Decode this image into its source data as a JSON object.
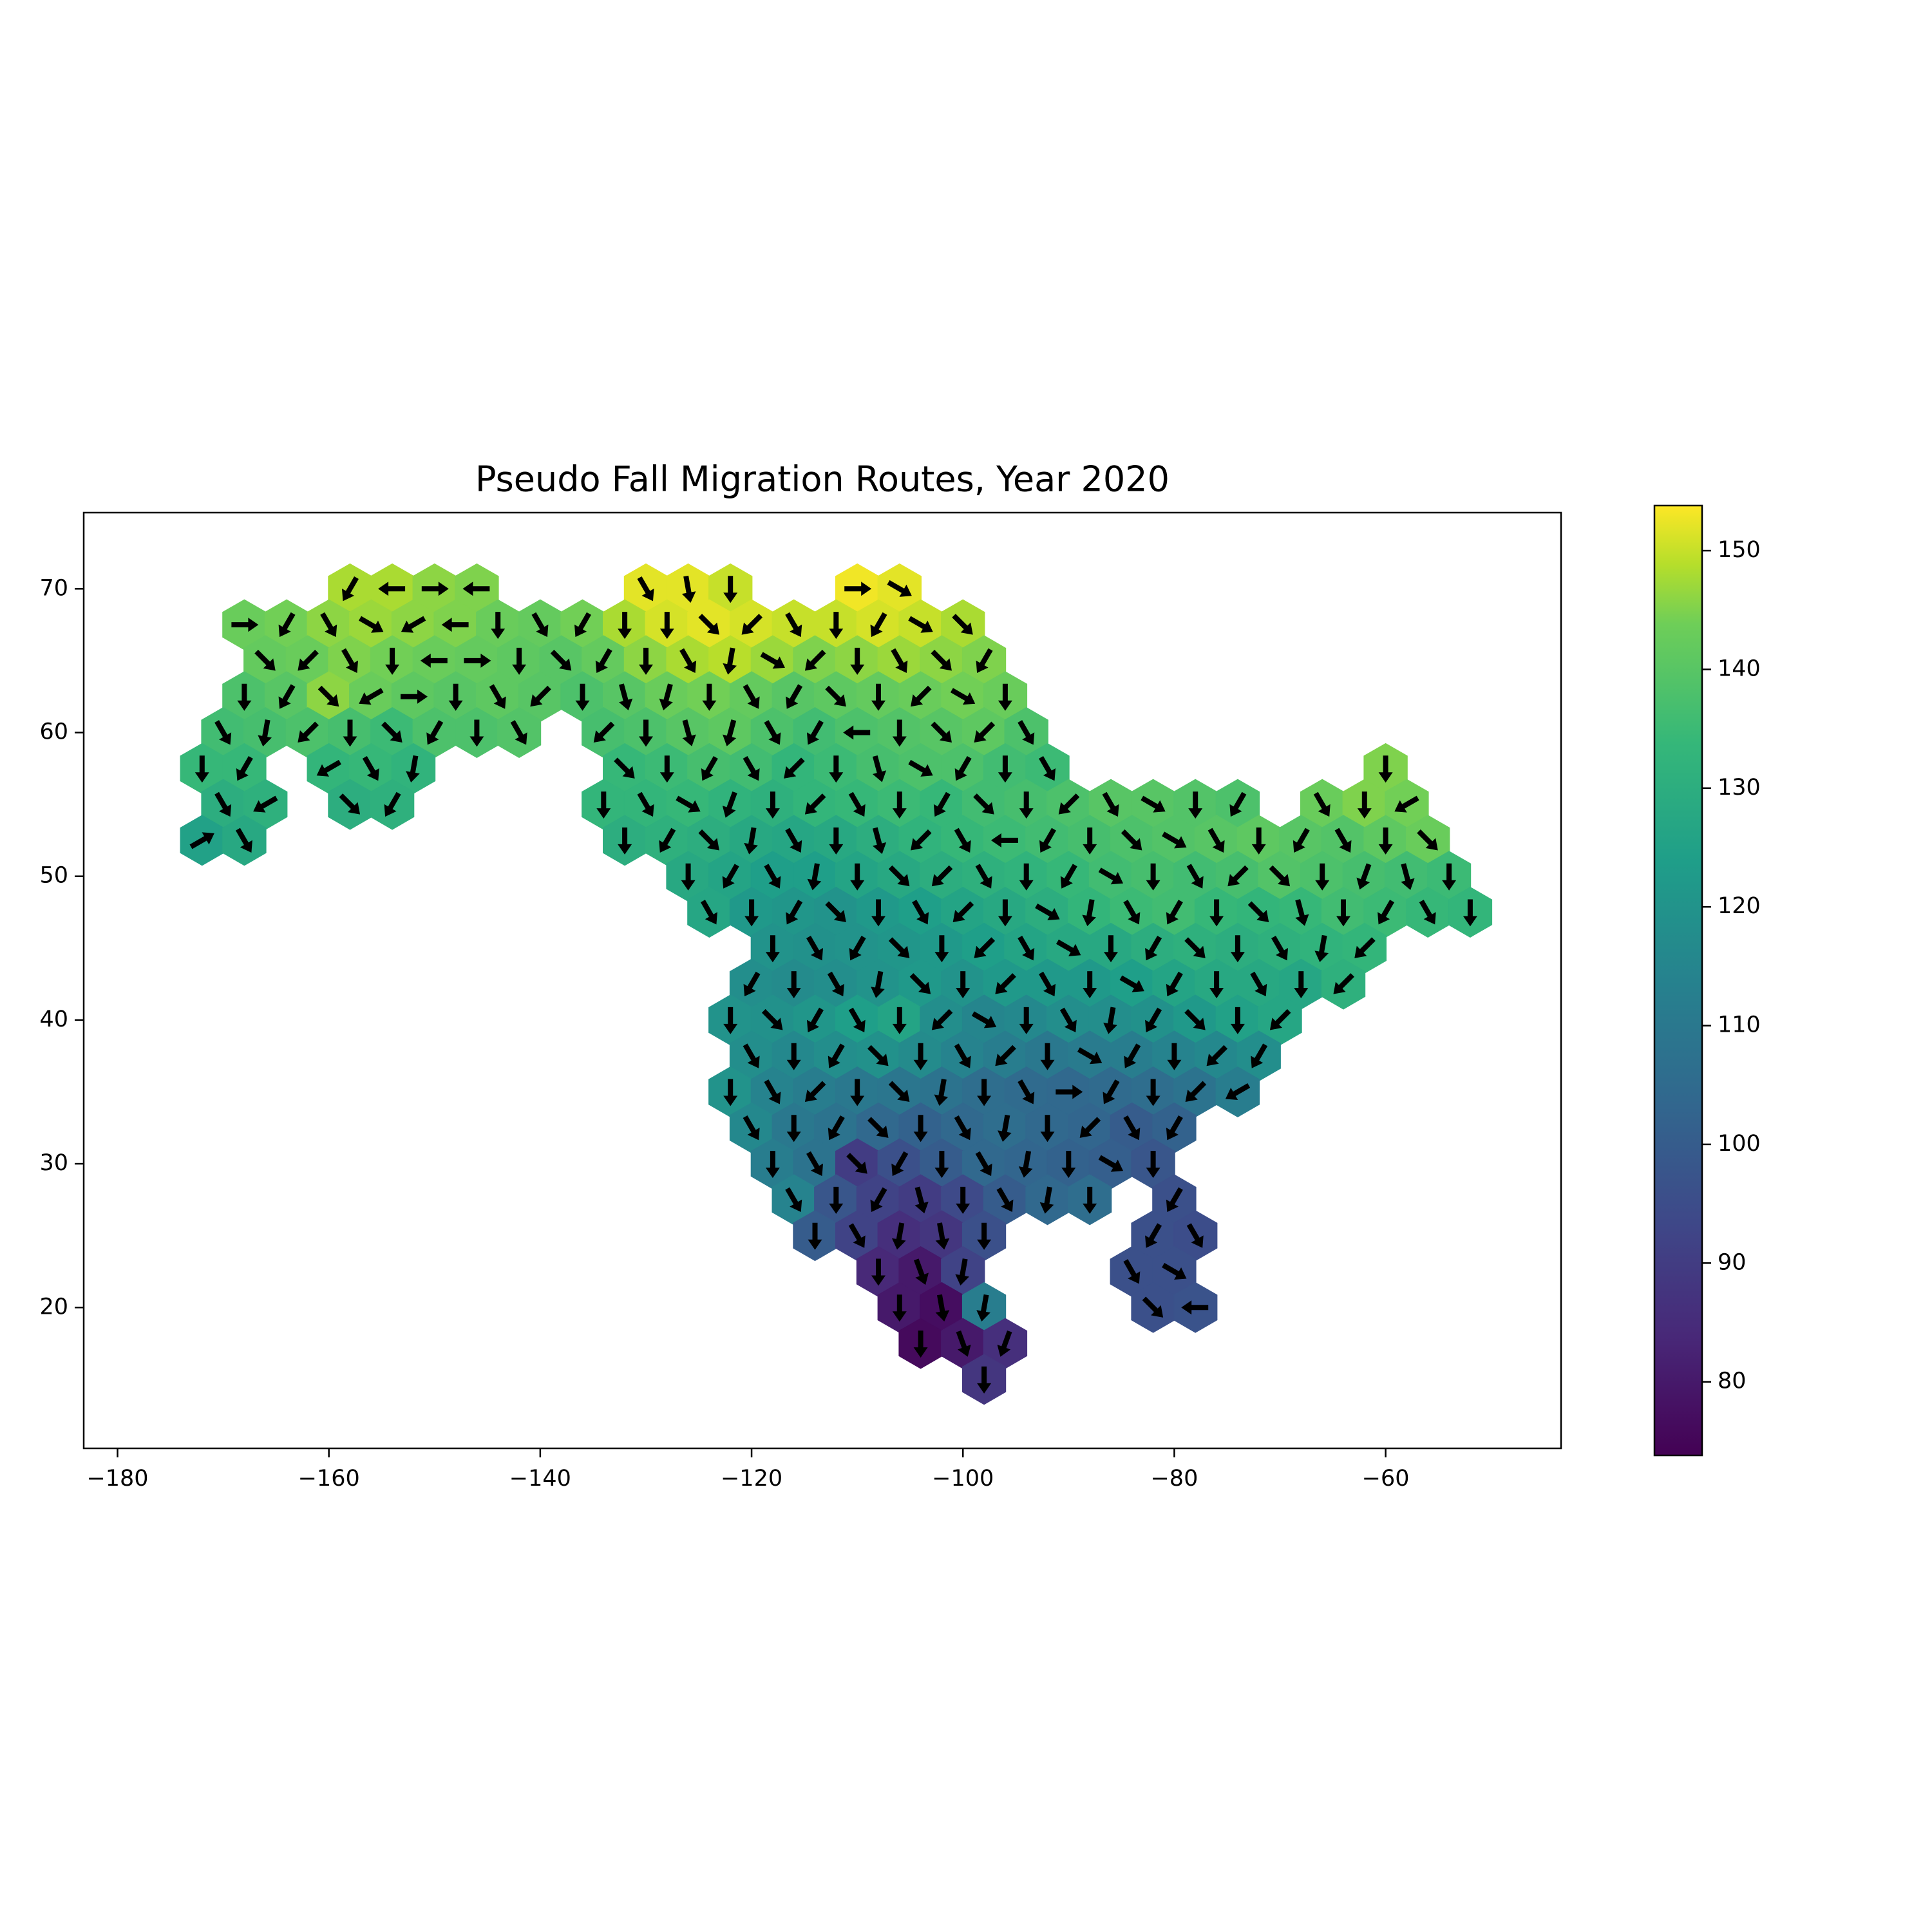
{
  "chart_data": {
    "type": "hexmap",
    "title": "Pseudo Fall Migration Routes, Year 2020",
    "xlim": [
      -183.2,
      -43.4
    ],
    "ylim": [
      10.2,
      75.3
    ],
    "xticks": [
      {
        "value": -180,
        "label": "−180"
      },
      {
        "value": -160,
        "label": "−160"
      },
      {
        "value": -140,
        "label": "−140"
      },
      {
        "value": -120,
        "label": "−120"
      },
      {
        "value": -100,
        "label": "−100"
      },
      {
        "value": -80,
        "label": "−80"
      },
      {
        "value": -60,
        "label": "−60"
      }
    ],
    "yticks": [
      20,
      30,
      40,
      50,
      60,
      70
    ],
    "clim": [
      73.8,
      153.8
    ],
    "cticks": [
      80,
      90,
      100,
      110,
      120,
      130,
      140,
      150
    ],
    "colormap": "viridis",
    "rows": [
      {
        "lat": 70,
        "lon": [
          -158,
          -154,
          -150,
          -146,
          -130,
          -126,
          -122,
          -110,
          -106
        ],
        "values": [
          148,
          148,
          146,
          145,
          152,
          152,
          150,
          153,
          152
        ],
        "directions": [
          -120,
          180,
          0,
          180,
          -60,
          -80,
          -90,
          0,
          -30
        ]
      },
      {
        "lat": 67.5,
        "lon": [
          -168,
          -164,
          -160,
          -156,
          -152,
          -148,
          -144,
          -140,
          -136,
          -132,
          -128,
          -124,
          -120,
          -116,
          -112,
          -108,
          -104,
          -100
        ],
        "values": [
          143,
          144,
          146,
          147,
          146,
          145,
          143,
          142,
          144,
          148,
          151,
          152,
          151,
          150,
          150,
          151,
          150,
          148
        ],
        "directions": [
          0,
          -120,
          -60,
          -30,
          -150,
          180,
          -90,
          -60,
          -120,
          -90,
          -90,
          -45,
          -135,
          -60,
          -90,
          -120,
          -30,
          -45
        ]
      },
      {
        "lat": 65,
        "lon": [
          -166,
          -162,
          -158,
          -154,
          -150,
          -146,
          -142,
          -138,
          -134,
          -130,
          -126,
          -122,
          -118,
          -114,
          -110,
          -106,
          -102,
          -98
        ],
        "values": [
          142,
          143,
          145,
          144,
          143,
          142,
          141,
          140,
          142,
          146,
          148,
          149,
          147,
          145,
          146,
          147,
          146,
          145
        ],
        "directions": [
          -45,
          -135,
          -60,
          -90,
          180,
          0,
          -90,
          -45,
          -120,
          -90,
          -60,
          -100,
          -30,
          -135,
          -90,
          -60,
          -45,
          -120
        ]
      },
      {
        "lat": 62.5,
        "lon": [
          -168,
          -164,
          -160,
          -156,
          -152,
          -148,
          -144,
          -140,
          -136,
          -132,
          -128,
          -124,
          -120,
          -116,
          -112,
          -108,
          -104,
          -100,
          -96
        ],
        "values": [
          138,
          140,
          146,
          143,
          141,
          140,
          141,
          140,
          138,
          140,
          143,
          144,
          142,
          140,
          141,
          142,
          143,
          144,
          143
        ],
        "directions": [
          -90,
          -120,
          -45,
          -150,
          0,
          -90,
          -60,
          -135,
          -90,
          -75,
          -105,
          -90,
          -60,
          -120,
          -45,
          -90,
          -135,
          -30,
          -90
        ]
      },
      {
        "lat": 60,
        "lon": [
          -170,
          -166,
          -162,
          -158,
          -154,
          -150,
          -146,
          -142,
          -134,
          -130,
          -126,
          -122,
          -118,
          -114,
          -110,
          -106,
          -102,
          -98,
          -94
        ],
        "values": [
          136,
          137,
          138,
          137,
          135,
          138,
          138,
          139,
          137,
          138,
          140,
          141,
          138,
          136,
          138,
          139,
          140,
          141,
          138
        ],
        "directions": [
          -60,
          -100,
          -135,
          -90,
          -45,
          -120,
          -90,
          -60,
          -135,
          -90,
          -75,
          -105,
          -60,
          -120,
          180,
          -90,
          -45,
          -135,
          -60
        ]
      },
      {
        "lat": 57.5,
        "lon": [
          -172,
          -168,
          -160,
          -156,
          -152,
          -132,
          -128,
          -124,
          -120,
          -116,
          -112,
          -108,
          -104,
          -100,
          -96,
          -92,
          -60
        ],
        "values": [
          134,
          134,
          133,
          134,
          132,
          134,
          135,
          137,
          136,
          133,
          135,
          137,
          138,
          138,
          136,
          135,
          145
        ],
        "directions": [
          -90,
          -120,
          -150,
          -60,
          -100,
          -45,
          -90,
          -120,
          -60,
          -135,
          -90,
          -75,
          -30,
          -120,
          -90,
          -60,
          -90
        ]
      },
      {
        "lat": 55,
        "lon": [
          -170,
          -166,
          -158,
          -154,
          -134,
          -130,
          -126,
          -122,
          -118,
          -114,
          -110,
          -106,
          -102,
          -98,
          -94,
          -90,
          -86,
          -82,
          -78,
          -74,
          -66,
          -62,
          -58
        ],
        "values": [
          130,
          131,
          130,
          131,
          133,
          133,
          134,
          132,
          131,
          133,
          134,
          135,
          134,
          136,
          137,
          138,
          140,
          140,
          139,
          138,
          143,
          145,
          144
        ],
        "directions": [
          -60,
          -150,
          -45,
          -120,
          -90,
          -60,
          -30,
          -110,
          -90,
          -135,
          -60,
          -90,
          -120,
          -45,
          -90,
          -135,
          -60,
          -30,
          -90,
          -120,
          -60,
          -90,
          -150
        ]
      },
      {
        "lat": 52.5,
        "lon": [
          -172,
          -168,
          -132,
          -128,
          -124,
          -120,
          -116,
          -112,
          -108,
          -104,
          -100,
          -96,
          -92,
          -88,
          -84,
          -80,
          -76,
          -72,
          -68,
          -64,
          -60,
          -56
        ],
        "values": [
          125,
          128,
          130,
          131,
          130,
          128,
          127,
          128,
          130,
          132,
          134,
          135,
          136,
          137,
          138,
          139,
          140,
          141,
          140,
          139,
          141,
          143
        ],
        "directions": [
          30,
          -60,
          -90,
          -120,
          -45,
          -100,
          -60,
          -90,
          -75,
          -135,
          -60,
          180,
          -120,
          -90,
          -45,
          -30,
          -60,
          -90,
          -120,
          -60,
          -90,
          -45
        ]
      },
      {
        "lat": 50,
        "lon": [
          -126,
          -122,
          -118,
          -114,
          -110,
          -106,
          -102,
          -98,
          -94,
          -90,
          -86,
          -82,
          -78,
          -74,
          -70,
          -66,
          -62,
          -58,
          -54
        ],
        "values": [
          128,
          126,
          124,
          124,
          126,
          128,
          130,
          131,
          132,
          134,
          136,
          137,
          136,
          137,
          139,
          138,
          137,
          136,
          135
        ],
        "directions": [
          -90,
          -120,
          -60,
          -100,
          -90,
          -45,
          -135,
          -60,
          -90,
          -120,
          -30,
          -90,
          -60,
          -135,
          -45,
          -90,
          -110,
          -75,
          -90
        ]
      },
      {
        "lat": 47.5,
        "lon": [
          -124,
          -120,
          -116,
          -112,
          -108,
          -104,
          -100,
          -96,
          -92,
          -88,
          -84,
          -80,
          -76,
          -72,
          -68,
          -64,
          -60,
          -56,
          -52
        ],
        "values": [
          127,
          122,
          121,
          120,
          122,
          124,
          126,
          128,
          130,
          133,
          135,
          136,
          134,
          133,
          134,
          136,
          135,
          134,
          133
        ],
        "directions": [
          -60,
          -90,
          -120,
          -45,
          -90,
          -60,
          -135,
          -90,
          -30,
          -100,
          -60,
          -120,
          -90,
          -45,
          -75,
          -90,
          -120,
          -60,
          -90
        ]
      },
      {
        "lat": 45,
        "lon": [
          -118,
          -114,
          -110,
          -106,
          -102,
          -98,
          -94,
          -90,
          -86,
          -82,
          -78,
          -74,
          -70,
          -66,
          -62
        ],
        "values": [
          120,
          119,
          120,
          121,
          122,
          124,
          126,
          128,
          128,
          130,
          131,
          130,
          131,
          132,
          133
        ],
        "directions": [
          -90,
          -60,
          -120,
          -45,
          -90,
          -135,
          -60,
          -30,
          -90,
          -120,
          -45,
          -90,
          -60,
          -100,
          -135
        ]
      },
      {
        "lat": 42.5,
        "lon": [
          -120,
          -116,
          -112,
          -108,
          -104,
          -100,
          -96,
          -92,
          -88,
          -84,
          -80,
          -76,
          -72,
          -68,
          -64
        ],
        "values": [
          118,
          117,
          118,
          120,
          122,
          120,
          122,
          122,
          122,
          124,
          126,
          128,
          128,
          127,
          131
        ],
        "directions": [
          -120,
          -90,
          -60,
          -100,
          -45,
          -90,
          -135,
          -60,
          -90,
          -30,
          -120,
          -90,
          -60,
          -90,
          -135
        ]
      },
      {
        "lat": 40,
        "lon": [
          -122,
          -118,
          -114,
          -110,
          -106,
          -102,
          -98,
          -94,
          -90,
          -86,
          -82,
          -78,
          -74,
          -70
        ],
        "values": [
          120,
          119,
          121,
          124,
          126,
          118,
          115,
          116,
          118,
          118,
          119,
          122,
          125,
          127
        ],
        "directions": [
          -90,
          -45,
          -120,
          -60,
          -90,
          -135,
          -30,
          -90,
          -60,
          -100,
          -120,
          -45,
          -90,
          -135
        ]
      },
      {
        "lat": 37.5,
        "lon": [
          -120,
          -116,
          -112,
          -108,
          -104,
          -100,
          -96,
          -92,
          -88,
          -84,
          -80,
          -76,
          -72
        ],
        "values": [
          118,
          116,
          118,
          119,
          117,
          114,
          112,
          110,
          111,
          112,
          114,
          116,
          118
        ],
        "directions": [
          -60,
          -90,
          -120,
          -45,
          -90,
          -60,
          -135,
          -90,
          -30,
          -120,
          -90,
          -135,
          -120
        ]
      },
      {
        "lat": 35,
        "lon": [
          -122,
          -118,
          -114,
          -110,
          -106,
          -102,
          -98,
          -94,
          -90,
          -86,
          -82,
          -78,
          -74
        ],
        "values": [
          120,
          114,
          112,
          110,
          109,
          108,
          106,
          105,
          104,
          105,
          106,
          108,
          112
        ],
        "directions": [
          -90,
          -60,
          -135,
          -90,
          -45,
          -100,
          -90,
          -60,
          0,
          -120,
          -90,
          -135,
          -150
        ]
      },
      {
        "lat": 32.5,
        "lon": [
          -120,
          -116,
          -112,
          -108,
          -104,
          -100,
          -96,
          -92,
          -88,
          -84,
          -80
        ],
        "values": [
          116,
          110,
          108,
          104,
          102,
          104,
          106,
          104,
          103,
          100,
          102
        ],
        "directions": [
          -60,
          -90,
          -120,
          -45,
          -90,
          -60,
          -100,
          -90,
          -135,
          -60,
          -120
        ]
      },
      {
        "lat": 30,
        "lon": [
          -118,
          -114,
          -110,
          -106,
          -102,
          -98,
          -94,
          -90,
          -86,
          -82
        ],
        "values": [
          112,
          108,
          90,
          96,
          100,
          104,
          103,
          102,
          101,
          98
        ],
        "directions": [
          -90,
          -60,
          -45,
          -120,
          -90,
          -60,
          -100,
          -90,
          -30,
          -90
        ]
      },
      {
        "lat": 27.5,
        "lon": [
          -116,
          -112,
          -108,
          -104,
          -100,
          -96,
          -92,
          -88,
          -80
        ],
        "values": [
          114,
          98,
          92,
          90,
          94,
          100,
          104,
          106,
          96
        ],
        "directions": [
          -60,
          -90,
          -120,
          -75,
          -90,
          -60,
          -100,
          -90,
          -120
        ]
      },
      {
        "lat": 25,
        "lon": [
          -114,
          -110,
          -106,
          -102,
          -98,
          -82,
          -78
        ],
        "values": [
          100,
          92,
          86,
          88,
          96,
          96,
          95
        ],
        "directions": [
          -90,
          -60,
          -100,
          -80,
          -90,
          -120,
          -60
        ]
      },
      {
        "lat": 22.5,
        "lon": [
          -108,
          -104,
          -100,
          -84,
          -80
        ],
        "values": [
          84,
          80,
          92,
          96,
          96
        ],
        "directions": [
          -90,
          -70,
          -100,
          -60,
          -30
        ]
      },
      {
        "lat": 20,
        "lon": [
          -106,
          -102,
          -98,
          -82,
          -78
        ],
        "values": [
          80,
          77,
          112,
          96,
          97
        ],
        "directions": [
          -90,
          -80,
          -100,
          -45,
          180
        ]
      },
      {
        "lat": 17.5,
        "lon": [
          -104,
          -100,
          -96
        ],
        "values": [
          76,
          80,
          86
        ],
        "directions": [
          -90,
          -70,
          -110
        ]
      },
      {
        "lat": 15,
        "lon": [
          -98
        ],
        "values": [
          88
        ],
        "directions": [
          -90
        ]
      }
    ]
  }
}
